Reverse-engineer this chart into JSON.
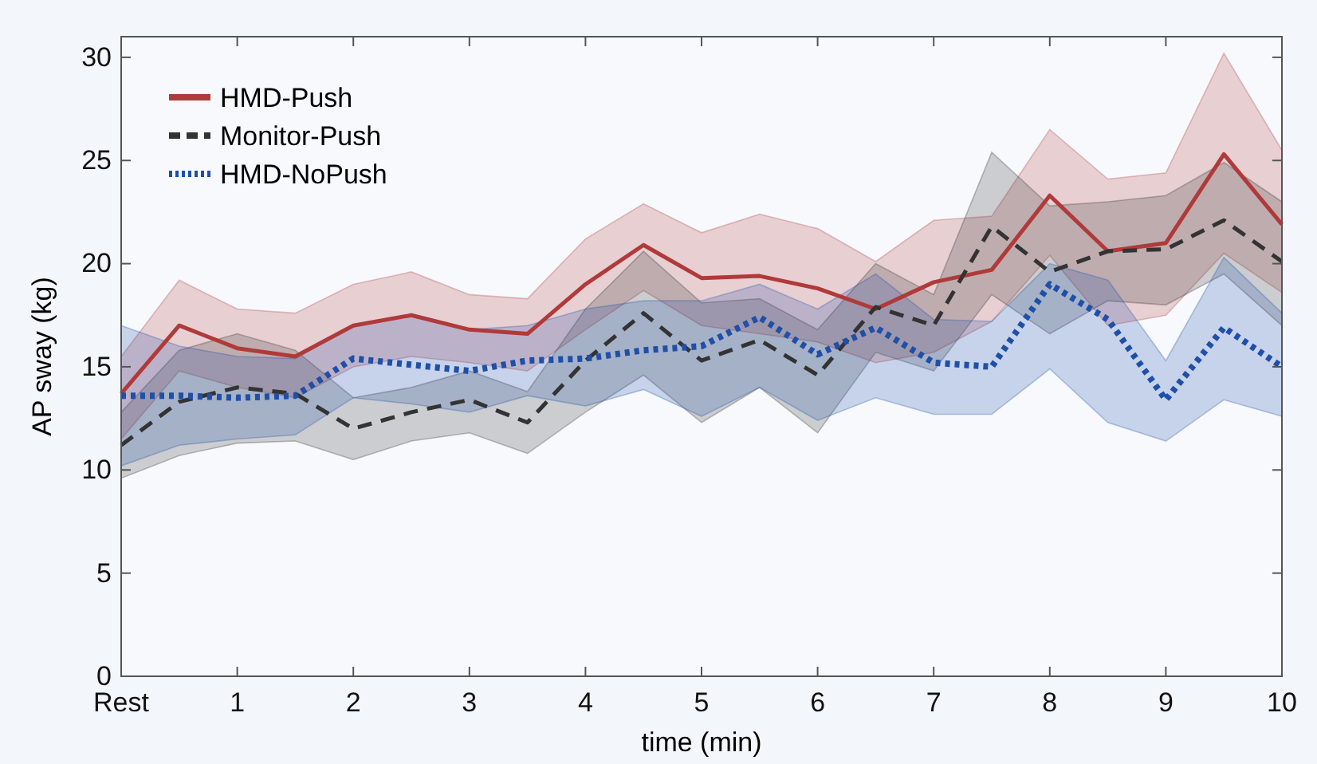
{
  "chart_data": {
    "type": "line",
    "xlabel": "time (min)",
    "ylabel": "AP sway (kg)",
    "x": [
      0,
      0.5,
      1,
      1.5,
      2,
      2.5,
      3,
      3.5,
      4,
      4.5,
      5,
      5.5,
      6,
      6.5,
      7,
      7.5,
      8,
      8.5,
      9,
      9.5,
      10
    ],
    "xlim": [
      0,
      10
    ],
    "xticks": [
      {
        "value": 0,
        "label": "Rest"
      },
      1,
      2,
      3,
      4,
      5,
      6,
      7,
      8,
      9,
      10
    ],
    "ylim": [
      0,
      31
    ],
    "yticks": [
      0,
      5,
      10,
      15,
      20,
      25,
      30
    ],
    "grid": false,
    "legend": "top left",
    "series": [
      {
        "name": "HMD-Push",
        "color": "#b03a3a",
        "line_style": "solid",
        "values": [
          13.7,
          17.0,
          15.9,
          15.5,
          17.0,
          17.5,
          16.8,
          16.6,
          19.0,
          20.9,
          19.3,
          19.4,
          18.8,
          17.8,
          19.1,
          19.7,
          23.3,
          20.6,
          21.0,
          25.3,
          21.9
        ],
        "lower": [
          11.5,
          14.8,
          14.0,
          13.5,
          15.0,
          15.5,
          15.2,
          14.8,
          16.8,
          18.7,
          17.0,
          16.6,
          16.2,
          15.2,
          15.7,
          17.2,
          20.4,
          17.0,
          17.5,
          20.5,
          18.6
        ],
        "upper": [
          15.5,
          19.2,
          17.8,
          17.6,
          19.0,
          19.6,
          18.5,
          18.3,
          21.2,
          22.9,
          21.5,
          22.4,
          21.7,
          20.1,
          22.1,
          22.3,
          26.5,
          24.1,
          24.4,
          30.2,
          25.5
        ]
      },
      {
        "name": "Monitor-Push",
        "color": "#333333",
        "line_style": "dashed",
        "values": [
          11.2,
          13.3,
          14.0,
          13.7,
          12.0,
          12.8,
          13.4,
          12.3,
          15.3,
          17.6,
          15.3,
          16.3,
          14.6,
          17.9,
          17.0,
          21.8,
          19.6,
          20.6,
          20.7,
          22.1,
          20.1
        ],
        "lower": [
          9.6,
          10.7,
          11.3,
          11.4,
          10.5,
          11.4,
          11.8,
          10.8,
          12.8,
          14.6,
          12.3,
          14.0,
          11.8,
          15.7,
          14.8,
          18.5,
          16.6,
          18.2,
          18.0,
          19.5,
          17.0
        ],
        "upper": [
          12.8,
          15.8,
          16.6,
          15.8,
          13.5,
          14.0,
          14.8,
          13.8,
          17.8,
          20.6,
          18.1,
          18.3,
          16.8,
          20.0,
          18.5,
          25.4,
          22.8,
          23.0,
          23.3,
          24.9,
          23.0
        ]
      },
      {
        "name": "HMD-NoPush",
        "color": "#1f4fa8",
        "line_style": "dotted",
        "values": [
          13.6,
          13.6,
          13.5,
          13.6,
          15.4,
          15.1,
          14.8,
          15.3,
          15.4,
          15.8,
          16.0,
          17.4,
          15.6,
          16.9,
          15.2,
          15.0,
          19.0,
          17.3,
          13.4,
          16.9,
          15.0
        ],
        "lower": [
          10.2,
          11.2,
          11.5,
          11.7,
          13.5,
          13.2,
          12.8,
          13.6,
          13.1,
          13.9,
          12.6,
          14.0,
          12.4,
          13.5,
          12.7,
          12.7,
          14.9,
          12.3,
          11.4,
          13.4,
          12.6
        ],
        "upper": [
          17.0,
          16.0,
          15.5,
          15.4,
          17.0,
          17.5,
          16.8,
          17.0,
          17.8,
          18.2,
          18.2,
          19.0,
          17.8,
          19.5,
          17.3,
          17.2,
          20.0,
          19.2,
          15.3,
          20.3,
          17.6
        ]
      }
    ]
  }
}
